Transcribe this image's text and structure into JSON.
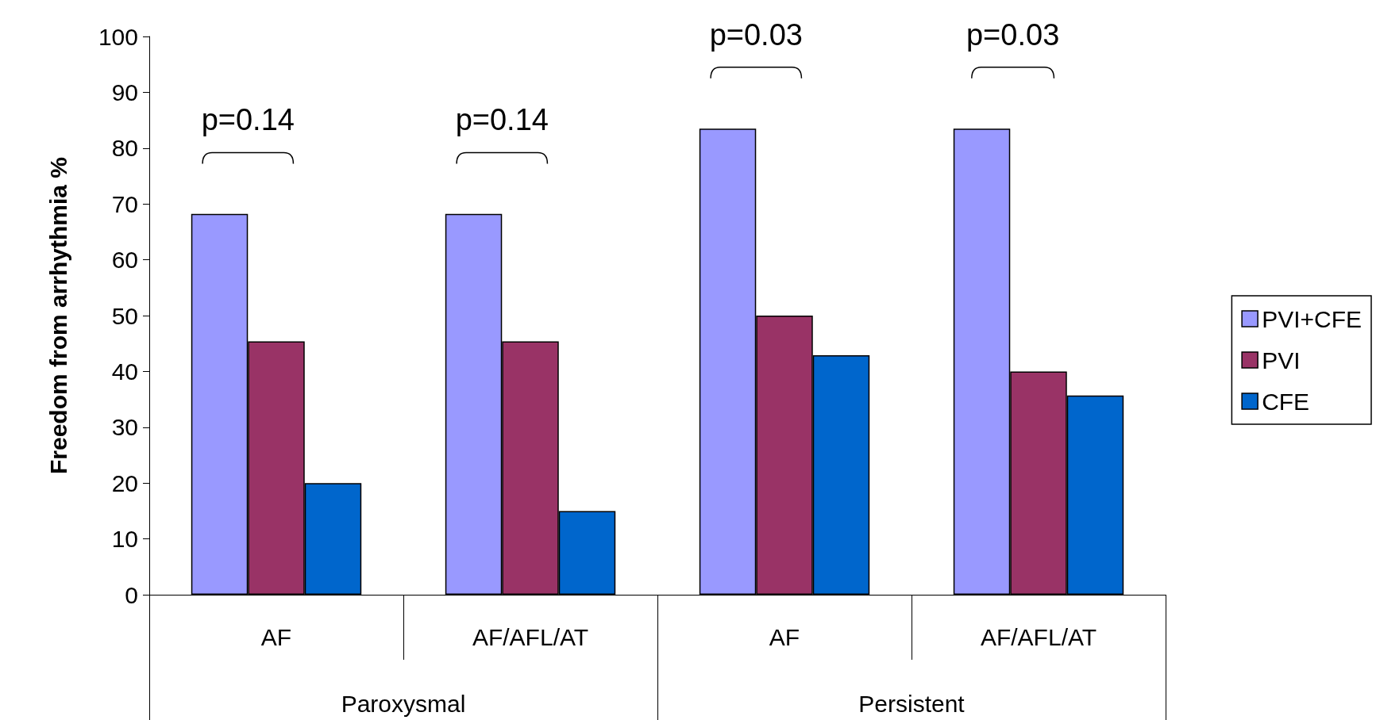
{
  "chart_data": {
    "type": "bar",
    "ylabel": "Freedom from arrhythmia %",
    "categories": [
      "AF",
      "AF/AFL/AT",
      "AF",
      "AF/AFL/AT"
    ],
    "series": [
      {
        "name": "PVI+CFE",
        "color": "#9999ff",
        "values": [
          68.2,
          68.2,
          83.5,
          83.5
        ]
      },
      {
        "name": "PVI",
        "color": "#993366",
        "values": [
          45.4,
          45.4,
          50,
          40
        ]
      },
      {
        "name": "CFE",
        "color": "#0066cc",
        "values": [
          20,
          15,
          42.9,
          35.7
        ]
      }
    ],
    "ylim": [
      0,
      100
    ],
    "yticks": [
      0,
      10,
      20,
      30,
      40,
      50,
      60,
      70,
      80,
      90,
      100
    ],
    "grid": false,
    "legend": "right",
    "annotations": [
      "p=0.14",
      "p=0.14",
      "p=0.03",
      "p=0.03",
      "Paroxysmal",
      "Persistent"
    ]
  }
}
